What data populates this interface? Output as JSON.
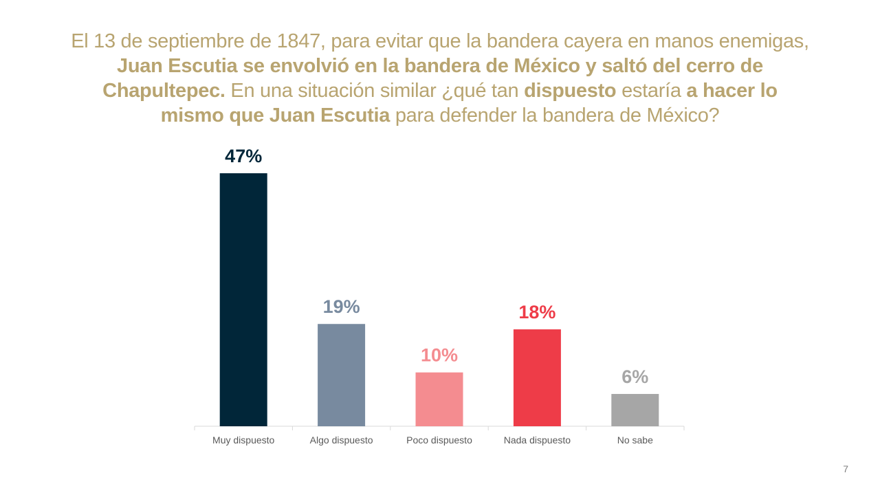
{
  "question": {
    "segments": [
      {
        "text": "El 13 de septiembre de 1847, para evitar que la bandera cayera en manos enemigas, ",
        "bold": false
      },
      {
        "text": "Juan Escutia se envolvió en la bandera de México y saltó del cerro de Chapultepec.",
        "bold": true
      },
      {
        "text": " En una situación similar ¿qué tan ",
        "bold": false
      },
      {
        "text": "dispuesto",
        "bold": true
      },
      {
        "text": " estaría ",
        "bold": false
      },
      {
        "text": "a hacer lo mismo que Juan Escutia",
        "bold": true
      },
      {
        "text": " para defender la bandera de México?",
        "bold": false
      }
    ]
  },
  "page_number": "7",
  "colors": {
    "title": "#b8a470",
    "axis": "#d9d9d9",
    "tick_label": "#595959"
  },
  "chart_data": {
    "type": "bar",
    "categories": [
      "Muy dispuesto",
      "Algo dispuesto",
      "Poco dispuesto",
      "Nada dispuesto",
      "No sabe"
    ],
    "values": [
      47,
      19,
      10,
      18,
      6
    ],
    "data_labels": [
      "47%",
      "19%",
      "10%",
      "18%",
      "6%"
    ],
    "bar_colors": [
      "#012639",
      "#788a9f",
      "#f48c90",
      "#ee3c48",
      "#a6a6a6"
    ],
    "label_colors": [
      "#012639",
      "#788a9f",
      "#f48c90",
      "#ee3c48",
      "#a6a6a6"
    ],
    "ylim": [
      0,
      47
    ],
    "grid": false,
    "legend": "none",
    "title": "",
    "xlabel": "",
    "ylabel": ""
  }
}
